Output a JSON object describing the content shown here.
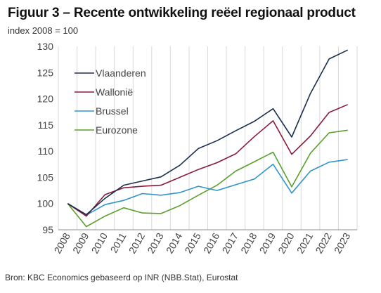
{
  "header": {
    "title": "Figuur 3 – Recente ontwikkeling reëel regionaal product",
    "subtitle": "index 2008 = 100"
  },
  "footer": {
    "source": "Bron: KBC Economics gebaseerd op INR (NBB.Stat), Eurostat"
  },
  "chart_data": {
    "type": "line",
    "title": "Figuur 3 – Recente ontwikkeling reëel regionaal product",
    "subtitle": "index 2008 = 100",
    "xlabel": "",
    "ylabel": "",
    "ylim": [
      95,
      130
    ],
    "yticks": [
      95,
      100,
      105,
      110,
      115,
      120,
      125,
      130
    ],
    "x": [
      "2008",
      "2009",
      "2010",
      "2011",
      "2012",
      "2013",
      "2014",
      "2015",
      "2016",
      "2017",
      "2018",
      "2019",
      "2020",
      "2021",
      "2022",
      "2023"
    ],
    "grid": "vertical",
    "legend_position": "top-left",
    "series": [
      {
        "name": "Vlaanderen",
        "color": "#1b2f4f",
        "values": [
          100,
          97.9,
          101.0,
          103.5,
          104.3,
          105.1,
          107.3,
          110.5,
          112.0,
          113.9,
          115.7,
          118.1,
          112.7,
          121.0,
          127.6,
          129.3
        ]
      },
      {
        "name": "Wallonië",
        "color": "#8b1a3a",
        "values": [
          100,
          97.6,
          101.7,
          103.0,
          103.3,
          103.5,
          105.0,
          106.5,
          107.8,
          109.5,
          112.8,
          115.8,
          109.4,
          112.9,
          117.4,
          118.9
        ]
      },
      {
        "name": "Brussel",
        "color": "#2f95c8",
        "values": [
          100,
          97.8,
          99.8,
          100.6,
          101.9,
          101.6,
          102.1,
          103.3,
          102.5,
          103.6,
          104.7,
          107.5,
          102.0,
          106.2,
          107.9,
          108.4
        ]
      },
      {
        "name": "Eurozone",
        "color": "#5aa02c",
        "values": [
          100,
          95.6,
          97.6,
          99.2,
          98.2,
          98.1,
          99.6,
          101.6,
          103.5,
          106.2,
          108.0,
          109.8,
          103.2,
          109.6,
          113.5,
          114.0
        ]
      }
    ]
  }
}
